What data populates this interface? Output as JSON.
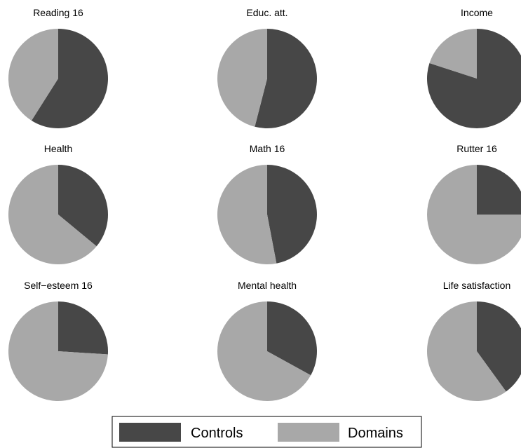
{
  "colors": {
    "controls": "#474747",
    "domains": "#a8a8a8",
    "background": "#ffffff"
  },
  "legend": {
    "placement": "bottom-center",
    "items": [
      {
        "label": "Controls",
        "color": "#474747"
      },
      {
        "label": "Domains",
        "color": "#a8a8a8"
      }
    ]
  },
  "chart_data": [
    {
      "type": "pie",
      "title": "Reading 16",
      "labels": [
        "Controls",
        "Domains"
      ],
      "values": [
        0.59,
        0.41
      ]
    },
    {
      "type": "pie",
      "title": "Educ. att.",
      "labels": [
        "Controls",
        "Domains"
      ],
      "values": [
        0.54,
        0.46
      ]
    },
    {
      "type": "pie",
      "title": "Income",
      "labels": [
        "Controls",
        "Domains"
      ],
      "values": [
        0.8,
        0.2
      ]
    },
    {
      "type": "pie",
      "title": "Health",
      "labels": [
        "Controls",
        "Domains"
      ],
      "values": [
        0.36,
        0.64
      ]
    },
    {
      "type": "pie",
      "title": "Math 16",
      "labels": [
        "Controls",
        "Domains"
      ],
      "values": [
        0.47,
        0.53
      ]
    },
    {
      "type": "pie",
      "title": "Rutter 16",
      "labels": [
        "Controls",
        "Domains"
      ],
      "values": [
        0.25,
        0.75
      ]
    },
    {
      "type": "pie",
      "title": "Self−esteem 16",
      "labels": [
        "Controls",
        "Domains"
      ],
      "values": [
        0.26,
        0.74
      ]
    },
    {
      "type": "pie",
      "title": "Mental health",
      "labels": [
        "Controls",
        "Domains"
      ],
      "values": [
        0.33,
        0.67
      ]
    },
    {
      "type": "pie",
      "title": "Life satisfaction",
      "labels": [
        "Controls",
        "Domains"
      ],
      "values": [
        0.4,
        0.6
      ]
    }
  ]
}
